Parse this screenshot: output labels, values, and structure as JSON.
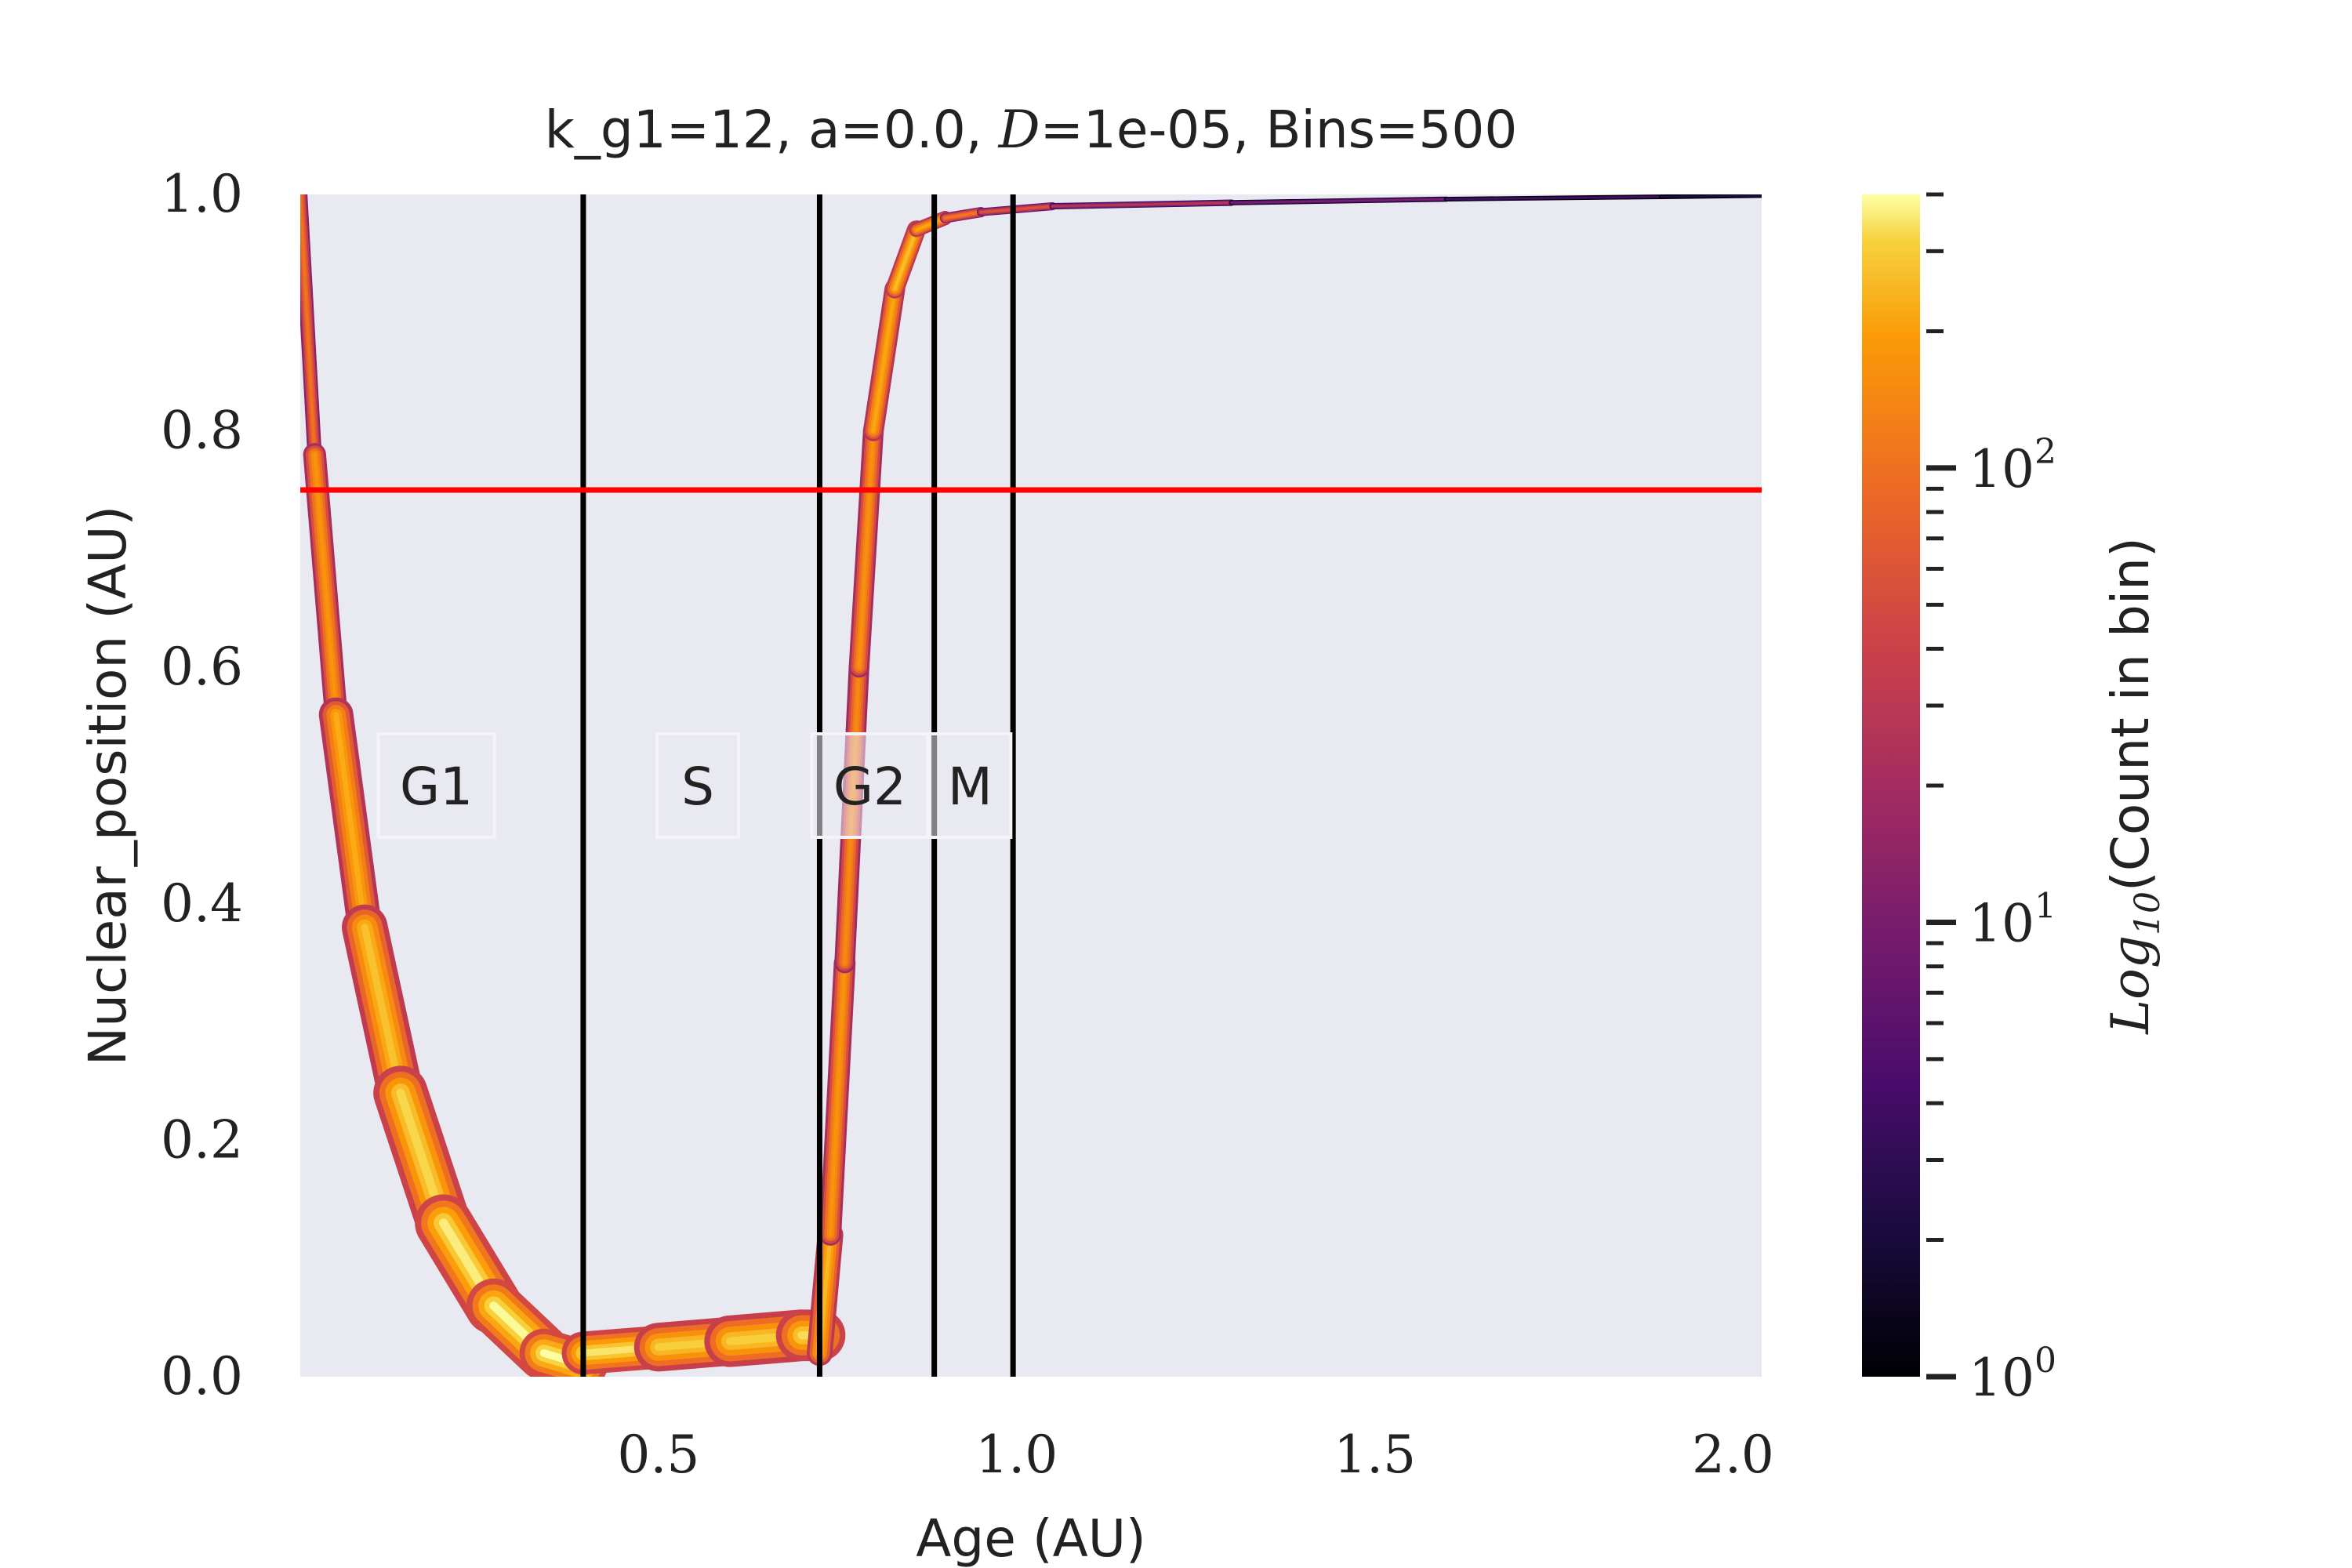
{
  "chart_data": {
    "type": "heatmap",
    "title": "k_g1=12, a=0.0, D=1e-05, Bins=500",
    "title_parts": {
      "prefix": "k_g1=12, a=0.0, ",
      "italic": "D",
      "suffix": "=1e-05, Bins=500"
    },
    "xlabel": "Age (AU)",
    "ylabel": "Nuclear_position (AU)",
    "xlim": [
      0.0,
      2.04
    ],
    "ylim": [
      0.0,
      1.0
    ],
    "xticks": [
      0.5,
      1.0,
      1.5,
      2.0
    ],
    "xtick_labels": [
      "0.5",
      "1.0",
      "1.5",
      "2.0"
    ],
    "yticks": [
      0.0,
      0.2,
      0.4,
      0.6,
      0.8,
      1.0
    ],
    "ytick_labels": [
      "0.0",
      "0.2",
      "0.4",
      "0.6",
      "0.8",
      "1.0"
    ],
    "background_color": "#e9e9f1",
    "colormap": "inferno",
    "colorbar": {
      "label": "Log10(Count in bin)",
      "label_parts": {
        "base": "Log",
        "sub": "10",
        "rest": "(Count in bin)"
      },
      "scale": "log",
      "range": [
        1,
        400
      ],
      "tick_values": [
        1,
        10,
        100
      ],
      "tick_labels": [
        {
          "base": "10",
          "exp": "0"
        },
        {
          "base": "10",
          "exp": "1"
        },
        {
          "base": "10",
          "exp": "2"
        }
      ]
    },
    "reference_lines": [
      {
        "orientation": "horizontal",
        "value": 0.75,
        "color": "#ff0000"
      },
      {
        "orientation": "vertical",
        "value": 0.395,
        "color": "#000000"
      },
      {
        "orientation": "vertical",
        "value": 0.725,
        "color": "#000000"
      },
      {
        "orientation": "vertical",
        "value": 0.885,
        "color": "#000000"
      },
      {
        "orientation": "vertical",
        "value": 0.995,
        "color": "#000000"
      }
    ],
    "phase_labels": [
      {
        "text": "G1",
        "x": 0.19,
        "y": 0.5
      },
      {
        "text": "S",
        "x": 0.555,
        "y": 0.5
      },
      {
        "text": "G2",
        "x": 0.795,
        "y": 0.5
      },
      {
        "text": "M",
        "x": 0.935,
        "y": 0.5
      }
    ],
    "density_ridge": {
      "description_free": true,
      "segments": [
        {
          "x": [
            0.0,
            0.02,
            0.05,
            0.09,
            0.14,
            0.2,
            0.27,
            0.34,
            0.395
          ],
          "y": [
            1.0,
            0.78,
            0.56,
            0.38,
            0.24,
            0.13,
            0.06,
            0.02,
            0.01
          ],
          "width": [
            0.01,
            0.015,
            0.025,
            0.035,
            0.045,
            0.05,
            0.05,
            0.045,
            0.04
          ],
          "count": [
            60,
            150,
            200,
            250,
            300,
            350,
            380,
            400,
            400
          ]
        },
        {
          "x": [
            0.395,
            0.5,
            0.6,
            0.7,
            0.725
          ],
          "y": [
            0.02,
            0.025,
            0.03,
            0.035,
            0.035
          ],
          "width": [
            0.035,
            0.04,
            0.045,
            0.045,
            0.045
          ],
          "count": [
            380,
            320,
            300,
            320,
            350
          ]
        },
        {
          "x": [
            0.725,
            0.74,
            0.76,
            0.78,
            0.8,
            0.83,
            0.86,
            0.9,
            0.95,
            1.05,
            1.3,
            1.6,
            1.9,
            2.04
          ],
          "y": [
            0.02,
            0.12,
            0.35,
            0.6,
            0.8,
            0.92,
            0.97,
            0.98,
            0.985,
            0.99,
            0.993,
            0.996,
            0.998,
            0.999
          ],
          "width": [
            0.025,
            0.02,
            0.018,
            0.018,
            0.018,
            0.018,
            0.015,
            0.01,
            0.008,
            0.006,
            0.005,
            0.004,
            0.004,
            0.004
          ],
          "count": [
            300,
            200,
            150,
            150,
            180,
            250,
            280,
            150,
            80,
            40,
            15,
            6,
            3,
            2
          ]
        }
      ]
    }
  }
}
